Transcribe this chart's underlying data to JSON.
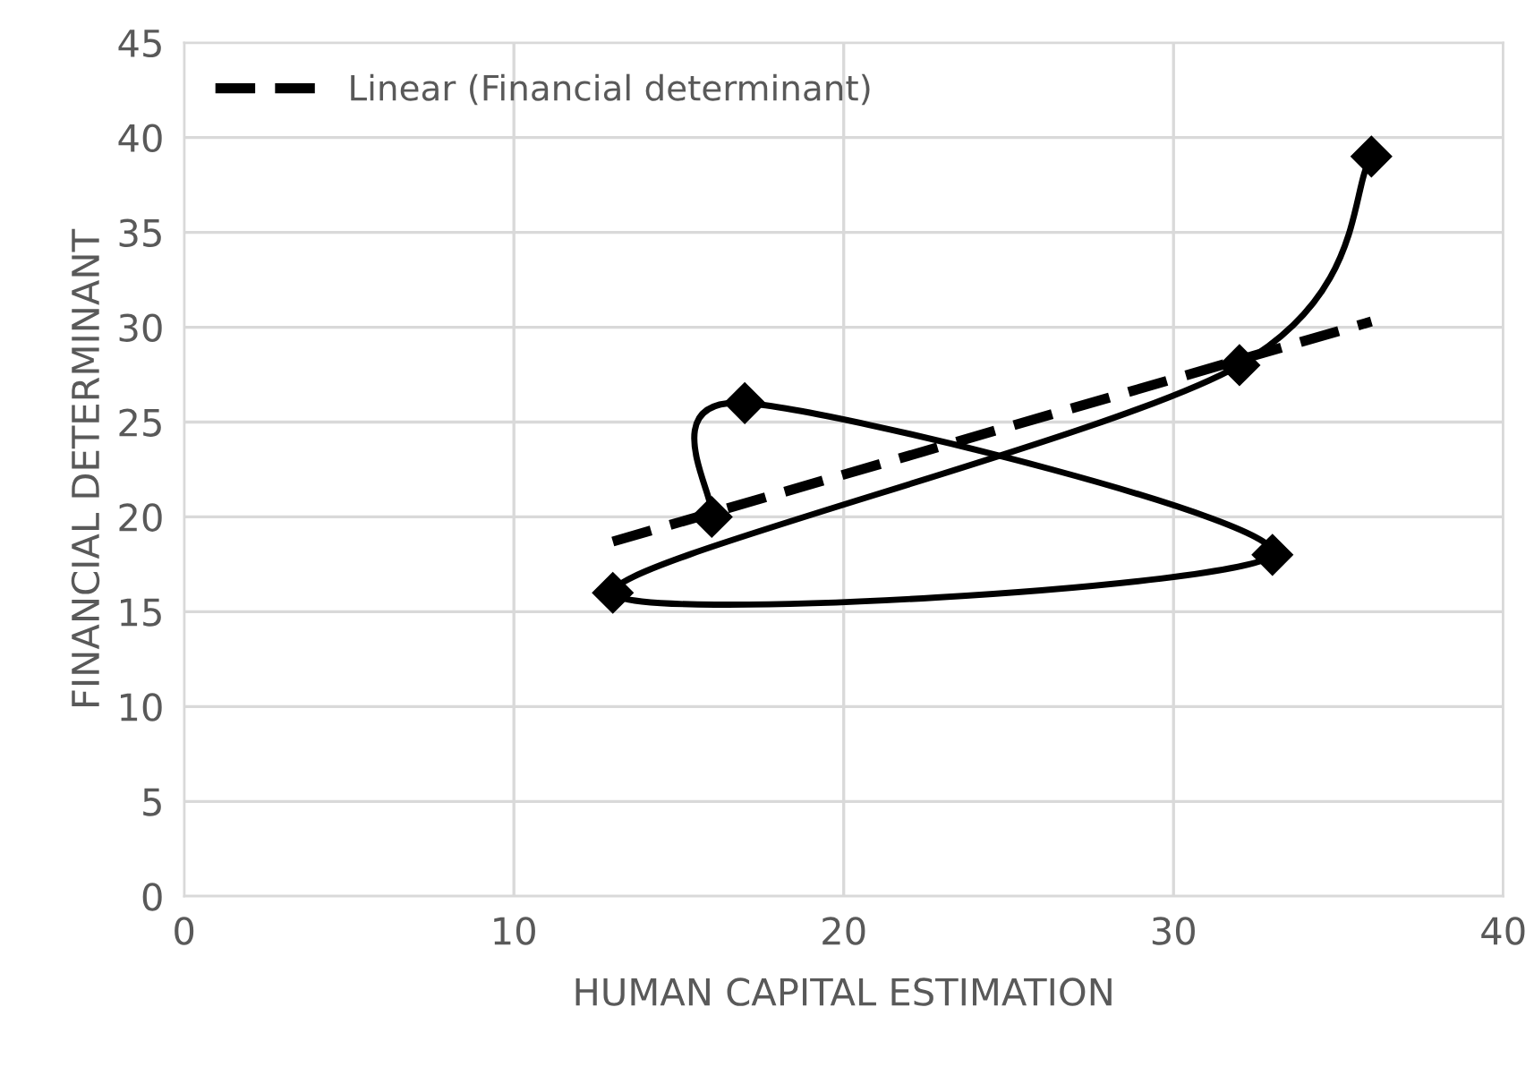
{
  "chart_data": {
    "type": "scatter",
    "xlabel": "HUMAN CAPITAL ESTIMATION",
    "ylabel": "FINANCIAL DETERMINANT",
    "xlim": [
      0,
      40
    ],
    "ylim": [
      0,
      45
    ],
    "xticks": [
      0,
      10,
      20,
      30,
      40
    ],
    "yticks": [
      0,
      5,
      10,
      15,
      20,
      25,
      30,
      35,
      40,
      45
    ],
    "grid": true,
    "legend": "top left",
    "series": [
      {
        "type": "line",
        "x": [
          16,
          17,
          33,
          13,
          32,
          36
        ],
        "values": [
          20,
          26,
          18,
          16,
          28,
          39
        ],
        "color": "#000000",
        "marker": "diamond",
        "line_style": "solid"
      },
      {
        "type": "line",
        "name": "Linear (Financial determinant)",
        "x": [
          13,
          36
        ],
        "values": [
          18.7,
          30.3
        ],
        "color": "#000000",
        "marker": "none",
        "line_style": "dashed"
      }
    ]
  }
}
